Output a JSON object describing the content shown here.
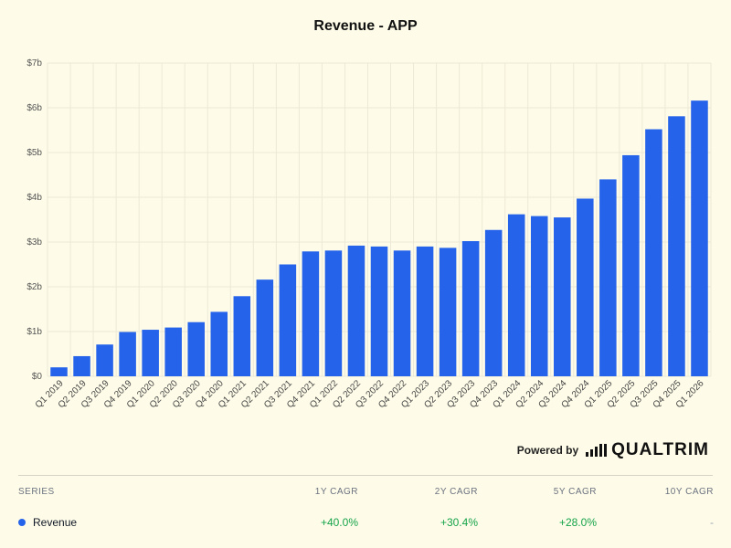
{
  "chart_data": {
    "type": "bar",
    "title": "Revenue - APP",
    "categories": [
      "Q1 2019",
      "Q2 2019",
      "Q3 2019",
      "Q4 2019",
      "Q1 2020",
      "Q2 2020",
      "Q3 2020",
      "Q4 2020",
      "Q1 2021",
      "Q2 2021",
      "Q3 2021",
      "Q4 2021",
      "Q1 2022",
      "Q2 2022",
      "Q3 2022",
      "Q4 2022",
      "Q1 2023",
      "Q2 2023",
      "Q3 2023",
      "Q4 2023",
      "Q1 2024",
      "Q2 2024",
      "Q3 2024",
      "Q4 2024",
      "Q1 2025",
      "Q2 2025",
      "Q3 2025",
      "Q4 2025",
      "Q1 2026"
    ],
    "series": [
      {
        "name": "Revenue",
        "color": "#2563eb",
        "values": [
          0.2,
          0.45,
          0.71,
          0.99,
          1.04,
          1.09,
          1.21,
          1.44,
          1.79,
          2.16,
          2.5,
          2.79,
          2.81,
          2.92,
          2.9,
          2.81,
          2.9,
          2.87,
          3.02,
          3.27,
          3.62,
          3.58,
          3.55,
          3.97,
          4.4,
          4.94,
          5.52,
          5.81,
          6.16
        ]
      }
    ],
    "yticks": [
      "$0",
      "$1b",
      "$2b",
      "$3b",
      "$4b",
      "$5b",
      "$6b",
      "$7b"
    ],
    "ylim": [
      0,
      7
    ],
    "grid": true,
    "xlabel": "",
    "ylabel": ""
  },
  "branding": {
    "powered_by": "Powered by",
    "brand": "QUALTRIM"
  },
  "table": {
    "headers": [
      "SERIES",
      "1Y CAGR",
      "2Y CAGR",
      "5Y CAGR",
      "10Y CAGR"
    ],
    "rows": [
      {
        "series": "Revenue",
        "y1": "+40.0%",
        "y2": "+30.4%",
        "y5": "+28.0%",
        "y10": "-"
      }
    ]
  }
}
